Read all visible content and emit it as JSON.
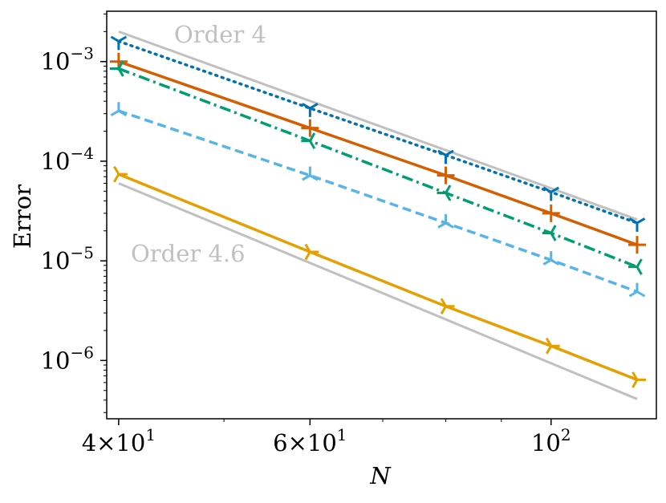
{
  "chart_data": {
    "type": "line",
    "xscale": "log",
    "yscale": "log",
    "xlim": [
      39,
      125
    ],
    "ylim": [
      2.6e-07,
      0.0032
    ],
    "xlabel": "N",
    "ylabel": "Error",
    "x_ticks": [
      {
        "value": 40,
        "mant": "4",
        "exp": "1"
      },
      {
        "value": 60,
        "mant": "6",
        "exp": "1"
      },
      {
        "value": 100,
        "base": "10",
        "exp": "2"
      }
    ],
    "y_ticks": [
      {
        "value": 1e-06,
        "base": "10",
        "exp": "−6"
      },
      {
        "value": 1e-05,
        "base": "10",
        "exp": "−5"
      },
      {
        "value": 0.0001,
        "base": "10",
        "exp": "−4"
      },
      {
        "value": 0.001,
        "base": "10",
        "exp": "−3"
      }
    ],
    "x_minor_ticks": [
      50,
      70,
      80,
      90
    ],
    "reference_lines": [
      {
        "label": "Order 4",
        "x": [
          40,
          120
        ],
        "y": [
          0.002,
          2.6e-05
        ],
        "color": "#c0c0c0"
      },
      {
        "label": "Order 4.6",
        "x": [
          40,
          120
        ],
        "y": [
          6e-05,
          4.1e-07
        ],
        "color": "#c0c0c0"
      }
    ],
    "series": [
      {
        "x": [
          40,
          60,
          80,
          100,
          120
        ],
        "y": [
          0.0016,
          0.00034,
          0.000115,
          4.9e-05,
          2.4e-05
        ],
        "color": "#0072b2",
        "dash": "dotted",
        "marker": "tri_down"
      },
      {
        "x": [
          40,
          60,
          80,
          100,
          120
        ],
        "y": [
          0.001,
          0.000215,
          7.2e-05,
          3e-05,
          1.45e-05
        ],
        "color": "#d55e00",
        "dash": "solid",
        "marker": "plus"
      },
      {
        "x": [
          40,
          60,
          80,
          100,
          120
        ],
        "y": [
          0.00085,
          0.00016,
          4.8e-05,
          1.9e-05,
          8.7e-06
        ],
        "color": "#009e73",
        "dash": "dashdot",
        "marker": "tri_left"
      },
      {
        "x": [
          40,
          60,
          80,
          100,
          120
        ],
        "y": [
          0.00032,
          7.2e-05,
          2.4e-05,
          1.02e-05,
          4.9e-06
        ],
        "color": "#56b4e9",
        "dash": "dashed",
        "marker": "tri_up"
      },
      {
        "x": [
          40,
          60,
          80,
          100,
          120
        ],
        "y": [
          7.4e-05,
          1.23e-05,
          3.5e-06,
          1.4e-06,
          6.4e-07
        ],
        "color": "#e69f00",
        "dash": "solid",
        "marker": "tri_right"
      }
    ]
  }
}
